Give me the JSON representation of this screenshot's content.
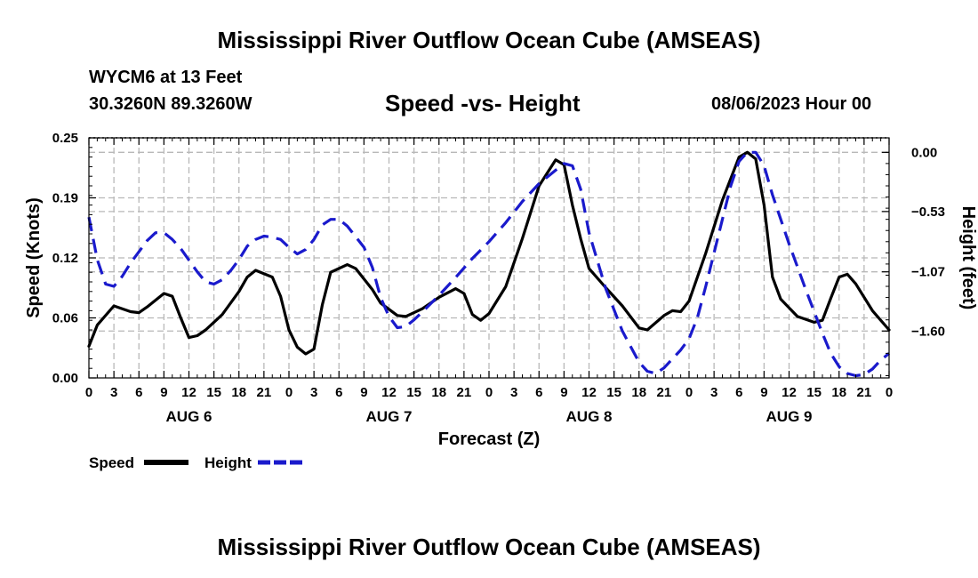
{
  "page": {
    "main_title": "Mississippi River Outflow Ocean Cube (AMSEAS)",
    "bottom_title": "Mississippi River Outflow Ocean Cube (AMSEAS)",
    "station": "WYCM6 at 13 Feet",
    "coords": "30.3260N  89.3260W",
    "subtitle": "Speed -vs- Height",
    "datetime": "08/06/2023 Hour 00"
  },
  "chart_data": {
    "type": "line",
    "title": "Speed -vs- Height",
    "xlabel": "Forecast (Z)",
    "ylabel": "Speed (Knots)",
    "y2label": "Height (feet)",
    "xlim": [
      0,
      96
    ],
    "ylim": [
      0,
      0.25
    ],
    "y2lim": [
      -2.02,
      0.13
    ],
    "x_ticks": [
      0,
      3,
      6,
      9,
      12,
      15,
      18,
      21,
      24,
      27,
      30,
      33,
      36,
      39,
      42,
      45,
      48,
      51,
      54,
      57,
      60,
      63,
      66,
      69,
      72,
      75,
      78,
      81,
      84,
      87,
      90,
      93,
      96
    ],
    "x_tick_labels": [
      "0",
      "3",
      "6",
      "9",
      "12",
      "15",
      "18",
      "21",
      "0",
      "3",
      "6",
      "9",
      "12",
      "15",
      "18",
      "21",
      "0",
      "3",
      "6",
      "9",
      "12",
      "15",
      "18",
      "21",
      "0",
      "3",
      "6",
      "9",
      "12",
      "15",
      "18",
      "21",
      "0"
    ],
    "day_labels": [
      {
        "x": 12,
        "text": "AUG 6"
      },
      {
        "x": 36,
        "text": "AUG 7"
      },
      {
        "x": 60,
        "text": "AUG 8"
      },
      {
        "x": 84,
        "text": "AUG 9"
      }
    ],
    "y_ticks": [
      0.0,
      0.0625,
      0.125,
      0.1875,
      0.25
    ],
    "y_tick_labels": [
      "0.00",
      "0.06",
      "0.12",
      "0.19",
      "0.25"
    ],
    "y2_ticks": [
      0.0,
      -0.53,
      -1.07,
      -1.6
    ],
    "y2_tick_labels": [
      "0.00",
      "−0.53",
      "−1.07",
      "−1.60"
    ],
    "grid": true,
    "series": [
      {
        "name": "Speed",
        "axis": "left",
        "color": "#000000",
        "dash": "solid",
        "points": [
          [
            0,
            0.033
          ],
          [
            1,
            0.055
          ],
          [
            3,
            0.075
          ],
          [
            5,
            0.069
          ],
          [
            6,
            0.068
          ],
          [
            7,
            0.074
          ],
          [
            9,
            0.088
          ],
          [
            10,
            0.085
          ],
          [
            11,
            0.063
          ],
          [
            12,
            0.042
          ],
          [
            13,
            0.044
          ],
          [
            14,
            0.05
          ],
          [
            15,
            0.058
          ],
          [
            16,
            0.066
          ],
          [
            18,
            0.09
          ],
          [
            19,
            0.105
          ],
          [
            20,
            0.112
          ],
          [
            22,
            0.105
          ],
          [
            23,
            0.085
          ],
          [
            24,
            0.05
          ],
          [
            25,
            0.032
          ],
          [
            26,
            0.025
          ],
          [
            27,
            0.03
          ],
          [
            28,
            0.076
          ],
          [
            29,
            0.11
          ],
          [
            31,
            0.118
          ],
          [
            32,
            0.114
          ],
          [
            34,
            0.092
          ],
          [
            35,
            0.078
          ],
          [
            37,
            0.065
          ],
          [
            38,
            0.064
          ],
          [
            40,
            0.072
          ],
          [
            42,
            0.084
          ],
          [
            44,
            0.093
          ],
          [
            45,
            0.088
          ],
          [
            46,
            0.066
          ],
          [
            47,
            0.06
          ],
          [
            48,
            0.067
          ],
          [
            50,
            0.095
          ],
          [
            52,
            0.145
          ],
          [
            54,
            0.2
          ],
          [
            56,
            0.227
          ],
          [
            57,
            0.222
          ],
          [
            58,
            0.18
          ],
          [
            59,
            0.145
          ],
          [
            60,
            0.114
          ],
          [
            62,
            0.094
          ],
          [
            64,
            0.075
          ],
          [
            66,
            0.052
          ],
          [
            67,
            0.05
          ],
          [
            69,
            0.065
          ],
          [
            70,
            0.07
          ],
          [
            71,
            0.069
          ],
          [
            72,
            0.08
          ],
          [
            74,
            0.13
          ],
          [
            76,
            0.185
          ],
          [
            78,
            0.23
          ],
          [
            79,
            0.235
          ],
          [
            80,
            0.228
          ],
          [
            81,
            0.18
          ],
          [
            82,
            0.105
          ],
          [
            83,
            0.082
          ],
          [
            85,
            0.064
          ],
          [
            87,
            0.058
          ],
          [
            88,
            0.06
          ],
          [
            89,
            0.083
          ],
          [
            90,
            0.105
          ],
          [
            91,
            0.108
          ],
          [
            92,
            0.098
          ],
          [
            94,
            0.07
          ],
          [
            96,
            0.05
          ]
        ]
      },
      {
        "name": "Height",
        "axis": "right",
        "color": "#1a1acc",
        "dash": "dashed",
        "points": [
          [
            0,
            -0.58
          ],
          [
            1,
            -0.96
          ],
          [
            2,
            -1.18
          ],
          [
            3,
            -1.2
          ],
          [
            4,
            -1.11
          ],
          [
            5,
            -0.99
          ],
          [
            7,
            -0.79
          ],
          [
            8,
            -0.72
          ],
          [
            9,
            -0.72
          ],
          [
            10,
            -0.78
          ],
          [
            11,
            -0.86
          ],
          [
            13,
            -1.07
          ],
          [
            14,
            -1.16
          ],
          [
            15,
            -1.18
          ],
          [
            16,
            -1.14
          ],
          [
            17,
            -1.06
          ],
          [
            18,
            -0.96
          ],
          [
            19,
            -0.84
          ],
          [
            20,
            -0.78
          ],
          [
            21,
            -0.75
          ],
          [
            22,
            -0.76
          ],
          [
            23,
            -0.78
          ],
          [
            24,
            -0.85
          ],
          [
            25,
            -0.91
          ],
          [
            26,
            -0.87
          ],
          [
            27,
            -0.78
          ],
          [
            28,
            -0.65
          ],
          [
            29,
            -0.6
          ],
          [
            30,
            -0.6
          ],
          [
            31,
            -0.66
          ],
          [
            33,
            -0.85
          ],
          [
            34,
            -1.03
          ],
          [
            35,
            -1.3
          ],
          [
            36,
            -1.47
          ],
          [
            37,
            -1.57
          ],
          [
            38,
            -1.56
          ],
          [
            39,
            -1.5
          ],
          [
            40,
            -1.43
          ],
          [
            42,
            -1.28
          ],
          [
            44,
            -1.12
          ],
          [
            46,
            -0.95
          ],
          [
            48,
            -0.8
          ],
          [
            50,
            -0.63
          ],
          [
            52,
            -0.44
          ],
          [
            54,
            -0.28
          ],
          [
            56,
            -0.16
          ],
          [
            57,
            -0.1
          ],
          [
            58,
            -0.12
          ],
          [
            59,
            -0.33
          ],
          [
            60,
            -0.72
          ],
          [
            62,
            -1.22
          ],
          [
            64,
            -1.6
          ],
          [
            66,
            -1.88
          ],
          [
            67,
            -1.96
          ],
          [
            68,
            -1.98
          ],
          [
            69,
            -1.93
          ],
          [
            71,
            -1.77
          ],
          [
            72,
            -1.67
          ],
          [
            73,
            -1.48
          ],
          [
            74,
            -1.2
          ],
          [
            76,
            -0.6
          ],
          [
            77,
            -0.3
          ],
          [
            78,
            -0.08
          ],
          [
            79,
            0.0
          ],
          [
            80,
            0.0
          ],
          [
            81,
            -0.12
          ],
          [
            82,
            -0.38
          ],
          [
            84,
            -0.82
          ],
          [
            86,
            -1.23
          ],
          [
            88,
            -1.62
          ],
          [
            89,
            -1.8
          ],
          [
            90,
            -1.92
          ],
          [
            91,
            -1.98
          ],
          [
            92,
            -2.0
          ],
          [
            93,
            -1.99
          ],
          [
            94,
            -1.94
          ],
          [
            95,
            -1.86
          ],
          [
            96,
            -1.8
          ]
        ]
      }
    ],
    "legend": [
      {
        "label": "Speed",
        "color": "#000000",
        "dash": "solid"
      },
      {
        "label": "Height",
        "color": "#1a1acc",
        "dash": "dashed"
      }
    ],
    "legend_placement": "bottom-left"
  }
}
